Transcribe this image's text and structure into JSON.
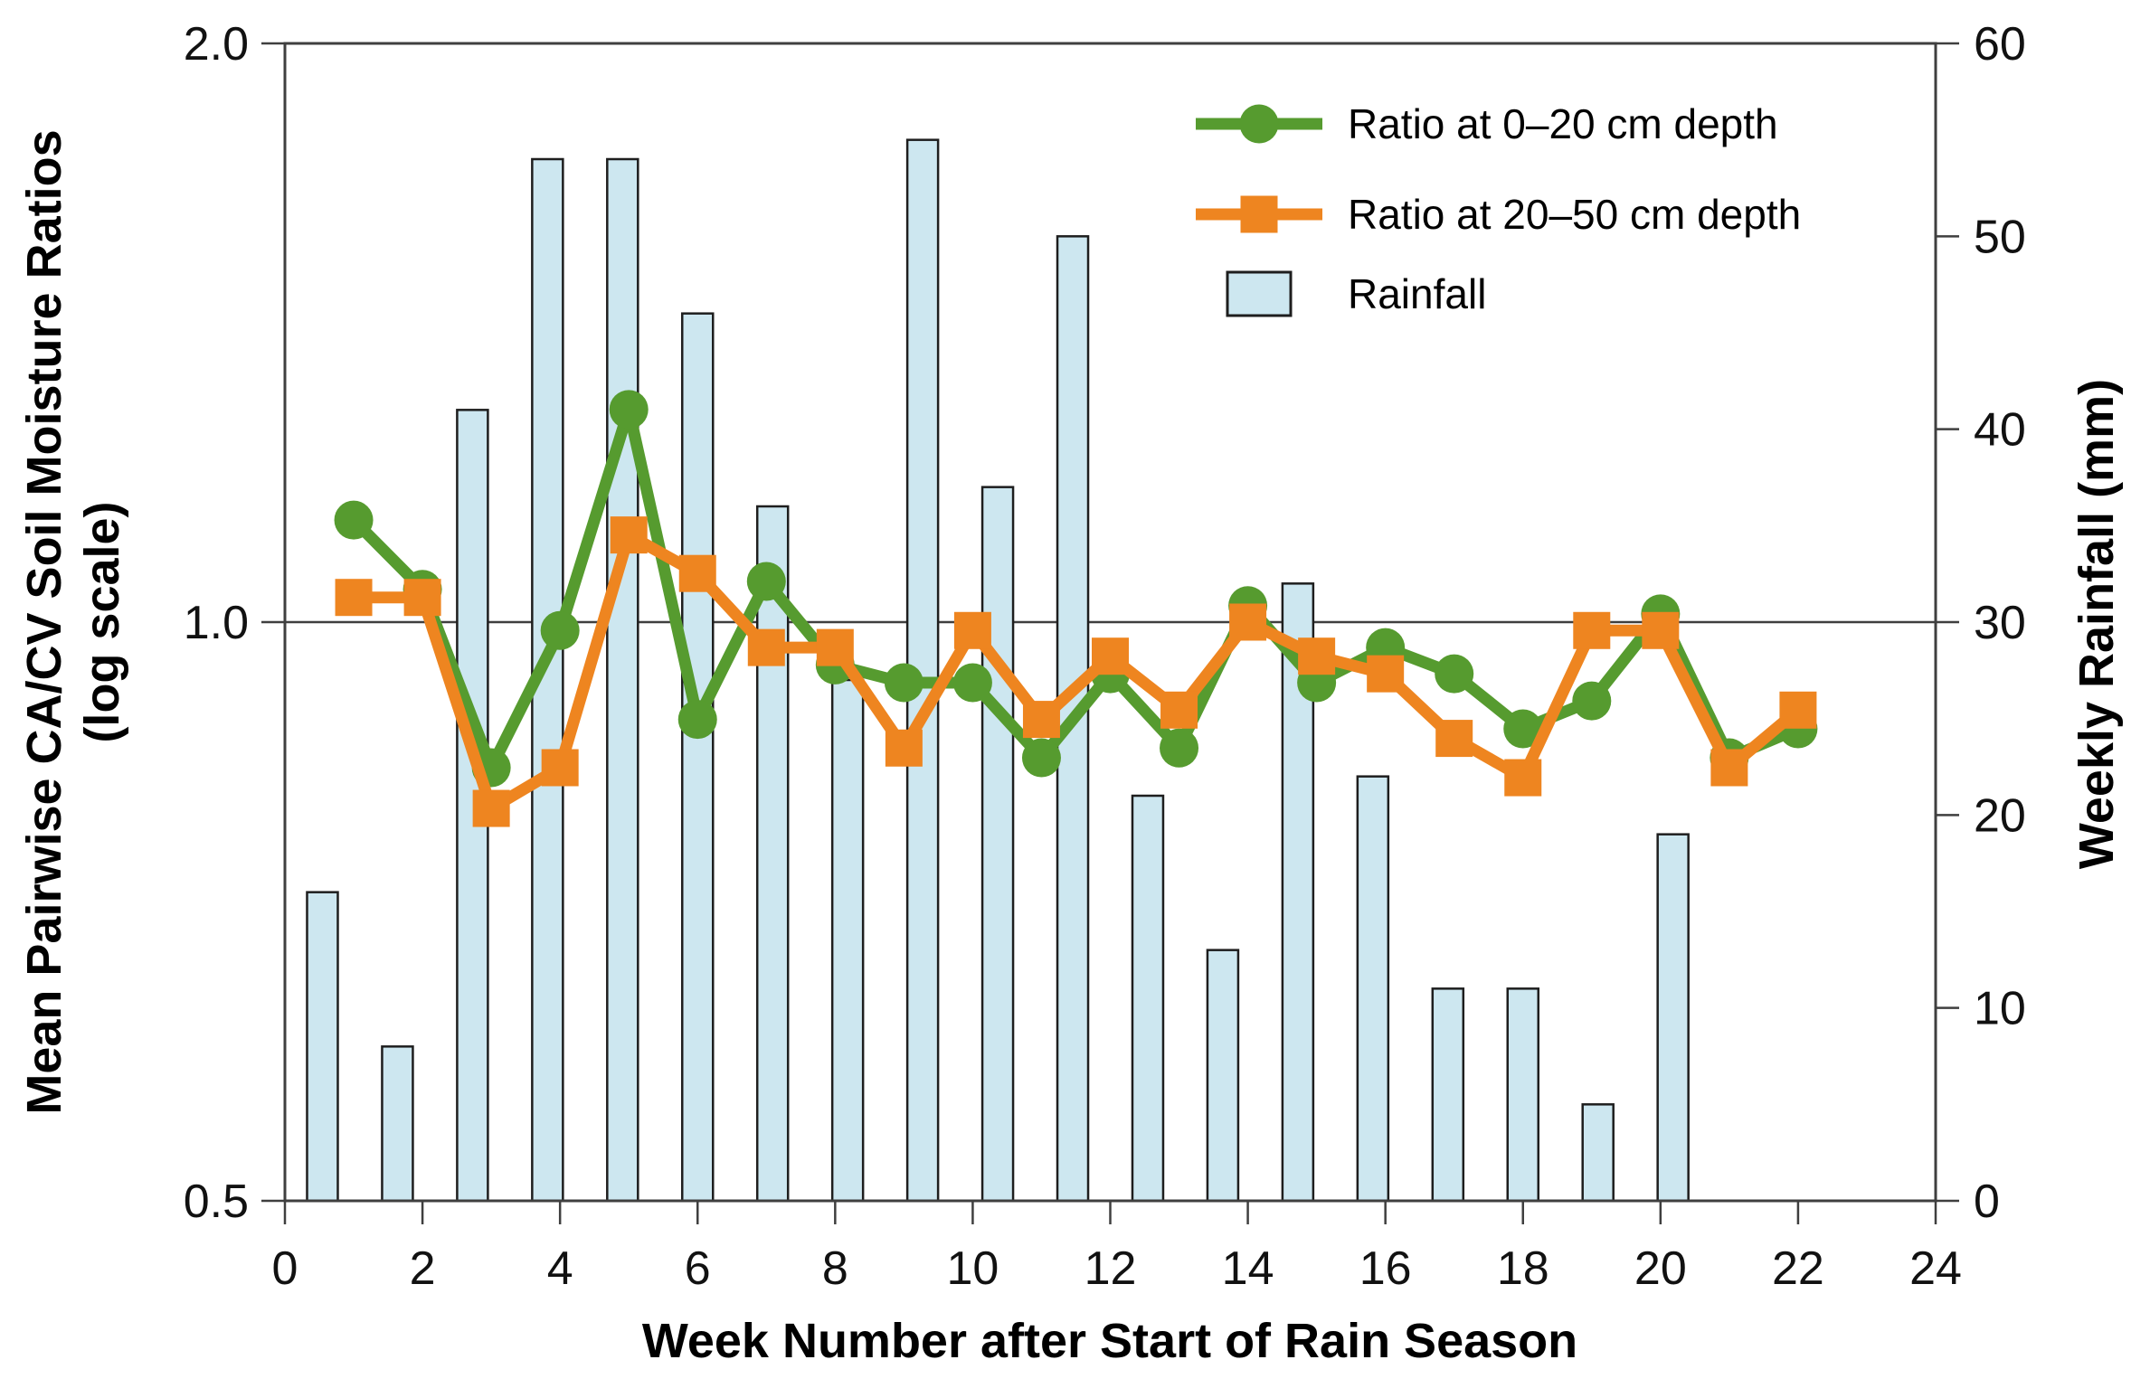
{
  "figure": {
    "background": "#ffffff"
  },
  "axes": {
    "x": {
      "title": "Week Number after Start of Rain Season",
      "tick_labels": [
        "0",
        "2",
        "4",
        "6",
        "8",
        "10",
        "12",
        "14",
        "16",
        "18",
        "20",
        "22",
        "24"
      ],
      "tick_values": [
        0,
        2,
        4,
        6,
        8,
        10,
        12,
        14,
        16,
        18,
        20,
        22,
        24
      ],
      "range": [
        0,
        24
      ]
    },
    "y_left": {
      "title_line1": "Mean Pairwise CA/CV Soil Moisture Ratios",
      "title_line2": "(log scale)",
      "tick_labels": [
        "2.0",
        "1.0",
        "0.5"
      ],
      "tick_values": [
        2.0,
        1.0,
        0.5
      ],
      "scale": "log2",
      "range": [
        0.5,
        2.0
      ],
      "gridline_at": 1.0
    },
    "y_right": {
      "title": "Weekly Rainfall (mm)",
      "tick_labels": [
        "60",
        "50",
        "40",
        "30",
        "20",
        "10",
        "0"
      ],
      "tick_values": [
        60,
        50,
        40,
        30,
        20,
        10,
        0
      ],
      "range": [
        0,
        60
      ]
    }
  },
  "legend": {
    "items": [
      {
        "label": "Ratio at 0–20 cm depth",
        "series": "ratio_0_20",
        "marker": "circle"
      },
      {
        "label": "Ratio at 20–50 cm depth",
        "series": "ratio_20_50",
        "marker": "square"
      },
      {
        "label": "Rainfall",
        "series": "rainfall",
        "marker": "bar-swatch"
      }
    ]
  },
  "colors": {
    "green": "#569B2F",
    "orange": "#EE8520",
    "bar_fill": "#CDE7F0",
    "bar_stroke": "#1E1E1E",
    "axis": "#3F3F3F",
    "text": "#000000"
  },
  "chart_data": {
    "type": "combo",
    "title": "",
    "xlabel": "Week Number after Start of Rain Season",
    "ylabel_left": "Mean Pairwise CA/CV Soil Moisture Ratios (log scale)",
    "ylabel_right": "Weekly Rainfall (mm)",
    "x_weeks": [
      1,
      2,
      3,
      4,
      5,
      6,
      7,
      8,
      9,
      10,
      11,
      12,
      13,
      14,
      15,
      16,
      17,
      18,
      19,
      20,
      21,
      22
    ],
    "layout": {
      "xlim": [
        0,
        24
      ],
      "left_ylim": [
        0.5,
        2.0
      ],
      "right_ylim": [
        0,
        60
      ],
      "gridline_left_value": 1.0,
      "legend_position": "top-right",
      "bar_position_rule": "(week-0.5)*24/22"
    },
    "series": [
      {
        "name": "Ratio at 0–20 cm depth",
        "type": "line",
        "axis": "left",
        "marker": "circle",
        "color": "#569B2F",
        "values": [
          1.13,
          1.04,
          0.84,
          0.99,
          1.29,
          0.89,
          1.05,
          0.95,
          0.93,
          0.93,
          0.85,
          0.94,
          0.86,
          1.02,
          0.93,
          0.97,
          0.94,
          0.88,
          0.91,
          1.01,
          0.85,
          0.88
        ]
      },
      {
        "name": "Ratio at 20–50 cm depth",
        "type": "line",
        "axis": "left",
        "marker": "square",
        "color": "#EE8520",
        "values": [
          1.03,
          1.03,
          0.8,
          0.84,
          1.11,
          1.06,
          0.97,
          0.97,
          0.86,
          0.99,
          0.89,
          0.96,
          0.9,
          1.0,
          0.96,
          0.94,
          0.87,
          0.83,
          0.99,
          0.99,
          0.84,
          0.9
        ]
      },
      {
        "name": "Rainfall",
        "type": "bar",
        "axis": "right",
        "color": "#CDE7F0",
        "values": [
          16,
          8,
          41,
          54,
          54,
          46,
          36,
          27,
          55,
          37,
          50,
          21,
          13,
          32,
          22,
          11,
          11,
          5,
          19,
          0,
          0,
          0
        ]
      }
    ]
  }
}
